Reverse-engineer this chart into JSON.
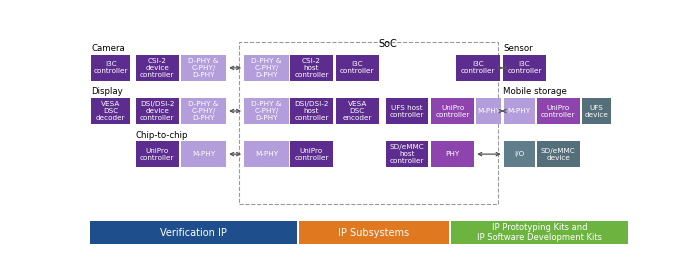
{
  "colors": {
    "dp": "#5c2d8e",
    "mp": "#8e44ad",
    "lp": "#b39ddb",
    "gray_blue": "#607d8b",
    "dark_gray": "#546e7a",
    "blue_bar": "#1e4f8c",
    "orange_bar": "#e07820",
    "green_bar": "#6db33f"
  },
  "labels": {
    "camera": "Camera",
    "display": "Display",
    "chip": "Chip-to-chip",
    "sensor": "Sensor",
    "mobile": "Mobile storage",
    "soc": "SoC",
    "ver": "Verification IP",
    "ips": "IP Subsystems",
    "ipr": "IP Prototyping Kits and\nIP Software Development Kits"
  }
}
